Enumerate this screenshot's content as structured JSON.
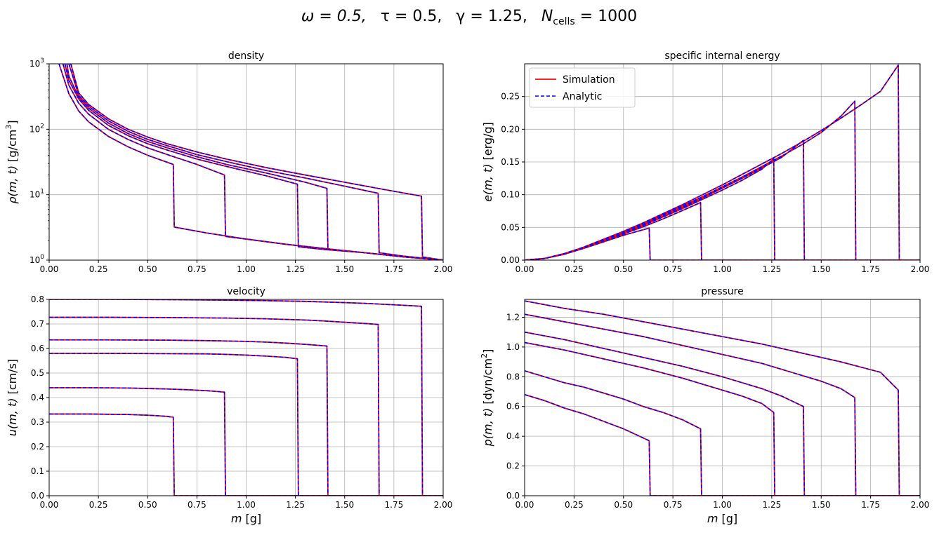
{
  "figure": {
    "suptitle": "ω = 0.5,   τ = 0.5,   γ = 1.25,   N_cells = 1000",
    "suptitle_parts": {
      "omega": "ω = 0.5,",
      "tau": "τ = 0.5,",
      "gamma": "γ = 1.25,",
      "n_main": "N",
      "n_sub": "cells",
      "n_val": " = 1000"
    },
    "colors": {
      "simulation": "#ff0000",
      "analytic": "#0000ff"
    },
    "legend": {
      "simulation": "Simulation",
      "analytic": "Analytic",
      "placement": "upper-left",
      "panel": "energy"
    },
    "xlabel": {
      "symbol": "m",
      "unit": " [g]"
    }
  },
  "chart_data": [
    {
      "id": "density",
      "type": "line",
      "title": "density",
      "yscale": "log",
      "ylabel": "ρ(m, t) [g/cm³]",
      "ylabel_parts": {
        "sym": "ρ(m, t)",
        "unit": " [g/cm",
        "sup": "3",
        "close": "]"
      },
      "xlim": [
        0,
        2
      ],
      "ylim": [
        1,
        1000
      ],
      "x_ticks": [
        "0.00",
        "0.25",
        "0.50",
        "0.75",
        "1.00",
        "1.25",
        "1.50",
        "1.75",
        "2.00"
      ],
      "y_ticks": [
        {
          "base": "10",
          "exp": "0",
          "v": 1
        },
        {
          "base": "10",
          "exp": "1",
          "v": 10
        },
        {
          "base": "10",
          "exp": "2",
          "v": 100
        },
        {
          "base": "10",
          "exp": "3",
          "v": 1000
        }
      ],
      "shock_positions": [
        0.63,
        0.89,
        1.26,
        1.41,
        1.67,
        1.89
      ],
      "series": [
        {
          "name": "t1",
          "x": [
            0.05,
            0.1,
            0.15,
            0.2,
            0.3,
            0.4,
            0.5,
            0.63,
            0.635,
            0.8,
            1.0,
            1.2,
            1.4,
            1.6,
            1.8,
            2.0
          ],
          "y": [
            1000,
            350,
            190,
            130,
            78,
            54,
            40,
            29,
            3.2,
            2.6,
            2.1,
            1.75,
            1.5,
            1.3,
            1.12,
            1.0
          ]
        },
        {
          "name": "t2",
          "x": [
            0.07,
            0.1,
            0.15,
            0.2,
            0.3,
            0.4,
            0.5,
            0.6,
            0.75,
            0.89,
            0.895,
            1.0,
            1.2,
            1.4,
            1.6,
            1.8,
            2.0
          ],
          "y": [
            1000,
            470,
            250,
            170,
            100,
            70,
            52,
            41,
            29,
            20,
            2.3,
            2.1,
            1.75,
            1.5,
            1.3,
            1.12,
            1.0
          ]
        },
        {
          "name": "t3",
          "x": [
            0.08,
            0.1,
            0.15,
            0.2,
            0.3,
            0.4,
            0.5,
            0.6,
            0.75,
            0.9,
            1.1,
            1.26,
            1.265,
            1.4,
            1.6,
            1.8,
            2.0
          ],
          "y": [
            1000,
            560,
            290,
            195,
            115,
            80,
            60,
            48,
            35,
            27,
            19.5,
            14.5,
            1.6,
            1.45,
            1.3,
            1.12,
            1.0
          ]
        },
        {
          "name": "t4",
          "x": [
            0.09,
            0.1,
            0.15,
            0.2,
            0.3,
            0.4,
            0.5,
            0.6,
            0.75,
            0.9,
            1.1,
            1.3,
            1.41,
            1.415,
            1.6,
            1.8,
            2.0
          ],
          "y": [
            1000,
            650,
            310,
            210,
            125,
            86,
            65,
            52,
            38,
            29,
            21.5,
            15.5,
            12.5,
            1.45,
            1.3,
            1.12,
            1.0
          ]
        },
        {
          "name": "t5",
          "x": [
            0.1,
            0.15,
            0.2,
            0.3,
            0.4,
            0.5,
            0.6,
            0.75,
            0.9,
            1.1,
            1.3,
            1.5,
            1.67,
            1.675,
            1.8,
            2.0
          ],
          "y": [
            1000,
            330,
            225,
            135,
            93,
            70,
            56,
            41,
            32,
            23.5,
            18,
            13.5,
            10.5,
            1.3,
            1.15,
            1.0
          ]
        },
        {
          "name": "t6",
          "x": [
            0.11,
            0.15,
            0.2,
            0.3,
            0.4,
            0.5,
            0.6,
            0.75,
            0.9,
            1.1,
            1.3,
            1.5,
            1.7,
            1.89,
            1.895,
            2.0
          ],
          "y": [
            1000,
            360,
            240,
            145,
            100,
            76,
            60,
            45,
            35,
            26,
            20,
            15.5,
            12,
            9.5,
            1.12,
            1.0
          ]
        }
      ]
    },
    {
      "id": "energy",
      "type": "line",
      "title": "specific internal energy",
      "yscale": "linear",
      "ylabel": "e(m, t) [erg/g]",
      "ylabel_parts": {
        "sym": "e(m, t)",
        "unit": " [erg/g]"
      },
      "xlim": [
        0,
        2
      ],
      "ylim": [
        0,
        0.3
      ],
      "x_ticks": [
        "0.00",
        "0.25",
        "0.50",
        "0.75",
        "1.00",
        "1.25",
        "1.50",
        "1.75",
        "2.00"
      ],
      "y_ticks": [
        {
          "label": "0.00",
          "v": 0
        },
        {
          "label": "0.05",
          "v": 0.05
        },
        {
          "label": "0.10",
          "v": 0.1
        },
        {
          "label": "0.15",
          "v": 0.15
        },
        {
          "label": "0.20",
          "v": 0.2
        },
        {
          "label": "0.25",
          "v": 0.25
        }
      ],
      "series": [
        {
          "name": "t1",
          "x": [
            0,
            0.1,
            0.2,
            0.3,
            0.4,
            0.5,
            0.63,
            0.635,
            2.0
          ],
          "y": [
            0,
            0.0025,
            0.009,
            0.018,
            0.028,
            0.038,
            0.049,
            0,
            0
          ]
        },
        {
          "name": "t2",
          "x": [
            0,
            0.1,
            0.2,
            0.3,
            0.4,
            0.5,
            0.6,
            0.7,
            0.8,
            0.89,
            0.895,
            2.0
          ],
          "y": [
            0,
            0.0025,
            0.009,
            0.019,
            0.029,
            0.04,
            0.051,
            0.063,
            0.076,
            0.088,
            0,
            0
          ]
        },
        {
          "name": "t3",
          "x": [
            0,
            0.1,
            0.2,
            0.3,
            0.4,
            0.5,
            0.6,
            0.7,
            0.8,
            0.9,
            1.0,
            1.1,
            1.2,
            1.26,
            1.265,
            2.0
          ],
          "y": [
            0,
            0.0025,
            0.009,
            0.019,
            0.03,
            0.041,
            0.053,
            0.066,
            0.079,
            0.093,
            0.107,
            0.122,
            0.139,
            0.155,
            0,
            0
          ]
        },
        {
          "name": "t4",
          "x": [
            0,
            0.1,
            0.2,
            0.3,
            0.4,
            0.5,
            0.6,
            0.7,
            0.8,
            0.9,
            1.0,
            1.1,
            1.2,
            1.3,
            1.41,
            1.415,
            2.0
          ],
          "y": [
            0,
            0.0025,
            0.009,
            0.019,
            0.03,
            0.042,
            0.054,
            0.067,
            0.081,
            0.095,
            0.11,
            0.125,
            0.141,
            0.157,
            0.183,
            0,
            0
          ]
        },
        {
          "name": "t5",
          "x": [
            0,
            0.1,
            0.2,
            0.3,
            0.4,
            0.5,
            0.6,
            0.7,
            0.8,
            0.9,
            1.0,
            1.1,
            1.2,
            1.3,
            1.4,
            1.5,
            1.6,
            1.67,
            1.675,
            2.0
          ],
          "y": [
            0,
            0.0025,
            0.009,
            0.019,
            0.031,
            0.043,
            0.055,
            0.069,
            0.083,
            0.097,
            0.112,
            0.127,
            0.143,
            0.159,
            0.176,
            0.195,
            0.22,
            0.243,
            0,
            0
          ]
        },
        {
          "name": "t6",
          "x": [
            0,
            0.1,
            0.2,
            0.3,
            0.4,
            0.5,
            0.6,
            0.7,
            0.8,
            0.9,
            1.0,
            1.1,
            1.2,
            1.3,
            1.4,
            1.5,
            1.6,
            1.7,
            1.8,
            1.89,
            1.895,
            2.0
          ],
          "y": [
            0,
            0.0025,
            0.01,
            0.02,
            0.032,
            0.044,
            0.057,
            0.071,
            0.085,
            0.1,
            0.115,
            0.131,
            0.147,
            0.163,
            0.18,
            0.198,
            0.217,
            0.237,
            0.258,
            0.298,
            0,
            0
          ]
        }
      ]
    },
    {
      "id": "velocity",
      "type": "line",
      "title": "velocity",
      "yscale": "linear",
      "ylabel": "u(m, t) [cm/s]",
      "ylabel_parts": {
        "sym": "u(m, t)",
        "unit": " [cm/s]"
      },
      "xlim": [
        0,
        2
      ],
      "ylim": [
        0,
        0.8
      ],
      "x_ticks": [
        "0.00",
        "0.25",
        "0.50",
        "0.75",
        "1.00",
        "1.25",
        "1.50",
        "1.75",
        "2.00"
      ],
      "y_ticks": [
        {
          "label": "0.0",
          "v": 0
        },
        {
          "label": "0.1",
          "v": 0.1
        },
        {
          "label": "0.2",
          "v": 0.2
        },
        {
          "label": "0.3",
          "v": 0.3
        },
        {
          "label": "0.4",
          "v": 0.4
        },
        {
          "label": "0.5",
          "v": 0.5
        },
        {
          "label": "0.6",
          "v": 0.6
        },
        {
          "label": "0.7",
          "v": 0.7
        },
        {
          "label": "0.8",
          "v": 0.8
        }
      ],
      "series": [
        {
          "name": "t1",
          "x": [
            0,
            0.1,
            0.2,
            0.3,
            0.4,
            0.5,
            0.55,
            0.6,
            0.63,
            0.635,
            2.0
          ],
          "y": [
            0.333,
            0.333,
            0.333,
            0.332,
            0.331,
            0.328,
            0.326,
            0.323,
            0.32,
            0,
            0
          ]
        },
        {
          "name": "t2",
          "x": [
            0,
            0.2,
            0.4,
            0.5,
            0.6,
            0.7,
            0.8,
            0.85,
            0.89,
            0.895,
            2.0
          ],
          "y": [
            0.44,
            0.44,
            0.439,
            0.437,
            0.435,
            0.432,
            0.428,
            0.425,
            0.422,
            0,
            0
          ]
        },
        {
          "name": "t3",
          "x": [
            0,
            0.3,
            0.6,
            0.8,
            0.9,
            1.0,
            1.1,
            1.2,
            1.26,
            1.265,
            2.0
          ],
          "y": [
            0.58,
            0.58,
            0.579,
            0.578,
            0.576,
            0.573,
            0.569,
            0.564,
            0.558,
            0,
            0
          ]
        },
        {
          "name": "t4",
          "x": [
            0,
            0.3,
            0.6,
            0.8,
            1.0,
            1.1,
            1.2,
            1.3,
            1.41,
            1.415,
            2.0
          ],
          "y": [
            0.635,
            0.635,
            0.634,
            0.632,
            0.629,
            0.626,
            0.622,
            0.617,
            0.61,
            0,
            0
          ]
        },
        {
          "name": "t5",
          "x": [
            0,
            0.3,
            0.6,
            0.9,
            1.1,
            1.3,
            1.4,
            1.5,
            1.6,
            1.67,
            1.675,
            2.0
          ],
          "y": [
            0.727,
            0.727,
            0.726,
            0.724,
            0.721,
            0.716,
            0.712,
            0.707,
            0.702,
            0.698,
            0,
            0
          ]
        },
        {
          "name": "t6",
          "x": [
            0,
            0.3,
            0.6,
            0.9,
            1.1,
            1.3,
            1.5,
            1.6,
            1.7,
            1.8,
            1.89,
            1.895,
            2.0
          ],
          "y": [
            0.8,
            0.8,
            0.799,
            0.797,
            0.795,
            0.792,
            0.787,
            0.784,
            0.78,
            0.776,
            0.772,
            0,
            0
          ]
        }
      ]
    },
    {
      "id": "pressure",
      "type": "line",
      "title": "pressure",
      "yscale": "linear",
      "ylabel": "p(m, t) [dyn/cm²]",
      "ylabel_parts": {
        "sym": "p(m, t)",
        "unit": " [dyn/cm",
        "sup": "2",
        "close": "]"
      },
      "xlim": [
        0,
        2
      ],
      "ylim": [
        0,
        1.32
      ],
      "x_ticks": [
        "0.00",
        "0.25",
        "0.50",
        "0.75",
        "1.00",
        "1.25",
        "1.50",
        "1.75",
        "2.00"
      ],
      "y_ticks": [
        {
          "label": "0.0",
          "v": 0
        },
        {
          "label": "0.2",
          "v": 0.2
        },
        {
          "label": "0.4",
          "v": 0.4
        },
        {
          "label": "0.6",
          "v": 0.6
        },
        {
          "label": "0.8",
          "v": 0.8
        },
        {
          "label": "1.0",
          "v": 1.0
        },
        {
          "label": "1.2",
          "v": 1.2
        }
      ],
      "series": [
        {
          "name": "t1",
          "x": [
            0,
            0.1,
            0.2,
            0.3,
            0.4,
            0.5,
            0.63,
            0.635,
            2.0
          ],
          "y": [
            0.68,
            0.64,
            0.59,
            0.55,
            0.5,
            0.45,
            0.37,
            0,
            0
          ]
        },
        {
          "name": "t2",
          "x": [
            0,
            0.1,
            0.2,
            0.3,
            0.4,
            0.5,
            0.6,
            0.7,
            0.8,
            0.89,
            0.895,
            2.0
          ],
          "y": [
            0.84,
            0.8,
            0.76,
            0.73,
            0.69,
            0.65,
            0.6,
            0.56,
            0.51,
            0.45,
            0,
            0
          ]
        },
        {
          "name": "t3",
          "x": [
            0,
            0.2,
            0.4,
            0.6,
            0.8,
            1.0,
            1.1,
            1.2,
            1.26,
            1.265,
            2.0
          ],
          "y": [
            1.03,
            0.98,
            0.92,
            0.86,
            0.79,
            0.71,
            0.67,
            0.62,
            0.56,
            0,
            0
          ]
        },
        {
          "name": "t4",
          "x": [
            0,
            0.2,
            0.4,
            0.6,
            0.8,
            1.0,
            1.2,
            1.3,
            1.41,
            1.415,
            2.0
          ],
          "y": [
            1.1,
            1.05,
            0.99,
            0.93,
            0.87,
            0.8,
            0.72,
            0.67,
            0.6,
            0,
            0
          ]
        },
        {
          "name": "t5",
          "x": [
            0,
            0.2,
            0.4,
            0.6,
            0.8,
            1.0,
            1.2,
            1.4,
            1.5,
            1.6,
            1.67,
            1.675,
            2.0
          ],
          "y": [
            1.22,
            1.17,
            1.12,
            1.07,
            1.01,
            0.95,
            0.89,
            0.81,
            0.77,
            0.72,
            0.66,
            0,
            0
          ]
        },
        {
          "name": "t6",
          "x": [
            0,
            0.2,
            0.4,
            0.6,
            0.8,
            1.0,
            1.2,
            1.4,
            1.6,
            1.8,
            1.89,
            1.895,
            2.0
          ],
          "y": [
            1.31,
            1.26,
            1.22,
            1.17,
            1.12,
            1.07,
            1.02,
            0.96,
            0.9,
            0.83,
            0.71,
            0,
            0
          ]
        }
      ]
    }
  ]
}
